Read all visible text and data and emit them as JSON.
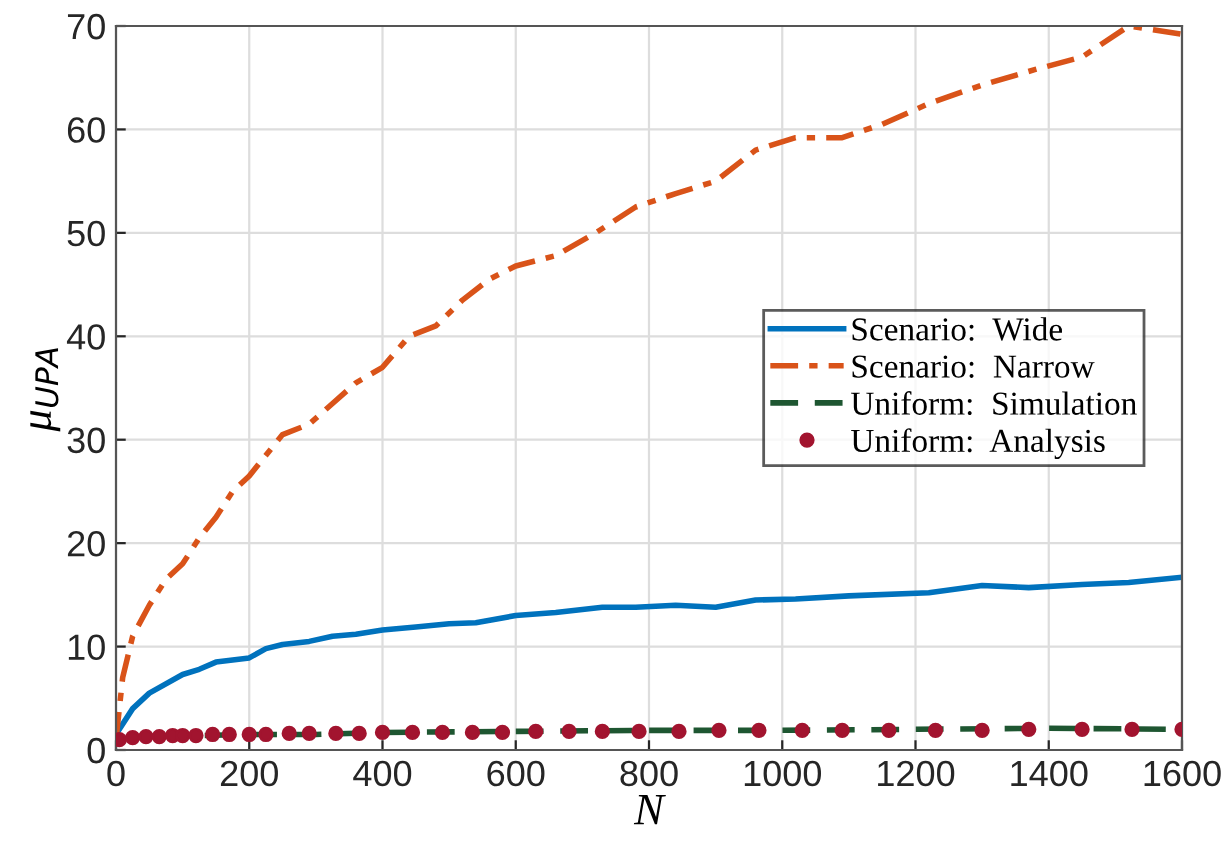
{
  "chart_data": {
    "type": "line",
    "xlabel": "N",
    "ylabel": "μ$_{UPA}$",
    "xlim": [
      0,
      1600
    ],
    "ylim": [
      0,
      70
    ],
    "xticks": [
      0,
      200,
      400,
      600,
      800,
      1000,
      1200,
      1400,
      1600
    ],
    "yticks": [
      0,
      10,
      20,
      30,
      40,
      50,
      60,
      70
    ],
    "grid": true,
    "legend": "right",
    "series": [
      {
        "name": "Scenario:  Wide",
        "color": "#0072bd",
        "line_style": "solid",
        "marker": "none",
        "x": [
          0,
          25,
          50,
          100,
          125,
          150,
          200,
          225,
          250,
          290,
          325,
          360,
          400,
          450,
          500,
          540,
          600,
          660,
          730,
          780,
          840,
          900,
          960,
          1020,
          1100,
          1220,
          1300,
          1370,
          1450,
          1520,
          1600
        ],
        "values": [
          1.5,
          4,
          5.5,
          7.3,
          7.8,
          8.5,
          8.9,
          9.8,
          10.2,
          10.5,
          11,
          11.2,
          11.6,
          11.9,
          12.2,
          12.3,
          13,
          13.3,
          13.8,
          13.8,
          14,
          13.8,
          14.5,
          14.6,
          14.9,
          15.2,
          15.9,
          15.7,
          16,
          16.2,
          16.7
        ]
      },
      {
        "name": "Scenario:  Narrow",
        "color": "#d95319",
        "line_style": "dashdot",
        "marker": "none",
        "x": [
          0,
          10,
          25,
          50,
          75,
          100,
          125,
          150,
          175,
          200,
          225,
          250,
          290,
          325,
          360,
          400,
          440,
          480,
          520,
          560,
          600,
          660,
          720,
          780,
          840,
          900,
          960,
          1020,
          1090,
          1150,
          1220,
          1300,
          1380,
          1450,
          1520,
          1600
        ],
        "values": [
          1,
          7,
          11,
          14,
          16.5,
          18,
          20.5,
          22.5,
          25,
          26.5,
          28.5,
          30.5,
          31.5,
          33.5,
          35.5,
          37,
          40,
          41,
          43.5,
          45.5,
          46.8,
          47.8,
          50,
          52.5,
          53.8,
          55,
          58,
          59.2,
          59.2,
          60.5,
          62.5,
          64.3,
          65.8,
          67,
          70,
          69.2
        ]
      },
      {
        "name": "Uniform:  Simulation",
        "color": "#1e5631",
        "line_style": "dashed",
        "marker": "none",
        "x": [
          0,
          50,
          200,
          300,
          400,
          600,
          800,
          1000,
          1200,
          1400,
          1600
        ],
        "values": [
          1,
          1.3,
          1.5,
          1.5,
          1.7,
          1.8,
          1.9,
          1.9,
          2,
          2.1,
          2
        ]
      },
      {
        "name": "Uniform:  Analysis",
        "color": "#a2142f",
        "type": "scatter",
        "marker": "circle",
        "x": [
          5,
          25,
          45,
          65,
          85,
          100,
          120,
          145,
          170,
          200,
          225,
          260,
          290,
          330,
          365,
          400,
          445,
          490,
          535,
          580,
          630,
          680,
          730,
          785,
          845,
          905,
          965,
          1030,
          1090,
          1160,
          1230,
          1300,
          1370,
          1450,
          1525,
          1600
        ],
        "values": [
          1.0,
          1.2,
          1.3,
          1.3,
          1.4,
          1.4,
          1.4,
          1.5,
          1.5,
          1.5,
          1.5,
          1.6,
          1.6,
          1.6,
          1.6,
          1.7,
          1.7,
          1.7,
          1.7,
          1.7,
          1.8,
          1.8,
          1.8,
          1.8,
          1.8,
          1.9,
          1.9,
          1.9,
          1.9,
          1.9,
          1.9,
          1.9,
          2.0,
          2.0,
          2.0,
          2.0
        ]
      }
    ]
  }
}
